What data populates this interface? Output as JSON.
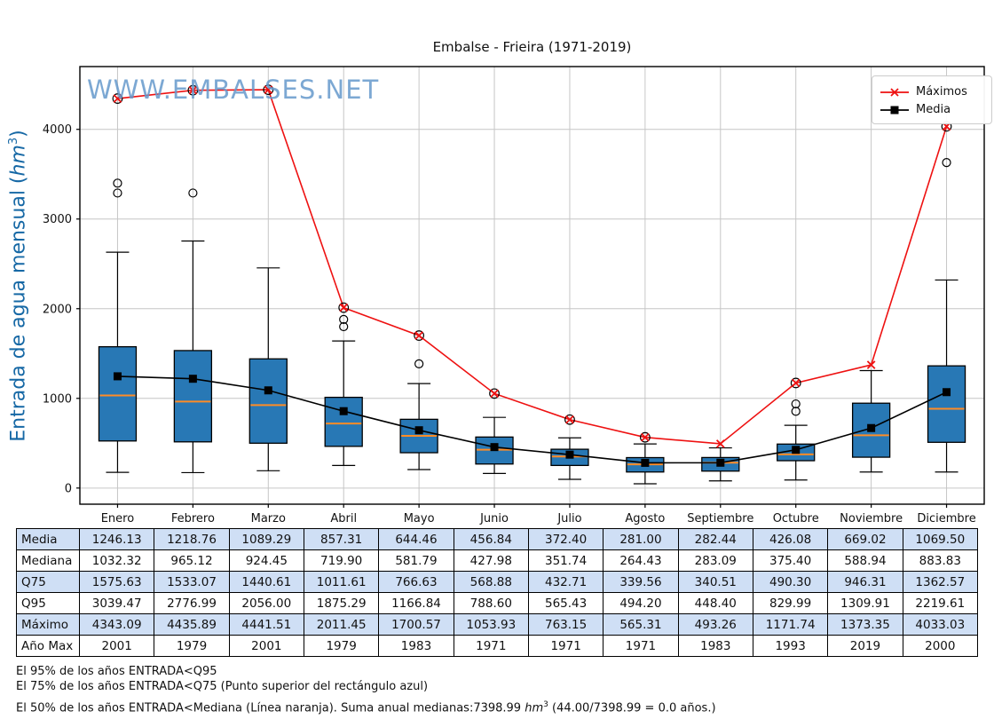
{
  "chart_data": {
    "type": "boxplot+line",
    "title": "Embalse - Frieira (1971-2019)",
    "watermark": "WWW.EMBALSES.NET",
    "ylabel": {
      "pre": "Entrada de agua mensual (",
      "unit": "hm",
      "sup": "3",
      "post": ")"
    },
    "categories": [
      "Enero",
      "Febrero",
      "Marzo",
      "Abril",
      "Mayo",
      "Junio",
      "Julio",
      "Agosto",
      "Septiembre",
      "Octubre",
      "Noviembre",
      "Diciembre"
    ],
    "ylim": [
      -180,
      4700
    ],
    "yticks": [
      0,
      1000,
      2000,
      3000,
      4000
    ],
    "grid": true,
    "legend_position": "upper right",
    "series": [
      {
        "name": "Máximos",
        "marker": "x",
        "color": "#ee1111",
        "values": [
          4343.09,
          4435.89,
          4441.51,
          2011.45,
          1700.57,
          1053.93,
          763.15,
          565.31,
          493.26,
          1171.74,
          1373.35,
          4033.03
        ],
        "circled": [
          true,
          true,
          true,
          true,
          true,
          true,
          true,
          true,
          false,
          true,
          false,
          true
        ]
      },
      {
        "name": "Media",
        "marker": "square",
        "color": "#000000",
        "values": [
          1246.13,
          1218.76,
          1089.29,
          857.31,
          644.46,
          456.84,
          372.4,
          281.0,
          282.44,
          426.08,
          669.02,
          1069.5
        ]
      }
    ],
    "boxes": [
      {
        "whisker_low": 175,
        "q1": 525,
        "median": 1032.32,
        "q3": 1575.63,
        "whisker_high": 2630,
        "outliers": [
          3290,
          3400
        ]
      },
      {
        "whisker_low": 172,
        "q1": 515,
        "median": 965.12,
        "q3": 1533.07,
        "whisker_high": 2755,
        "outliers": [
          3290
        ]
      },
      {
        "whisker_low": 193,
        "q1": 500,
        "median": 924.45,
        "q3": 1440.61,
        "whisker_high": 2455,
        "outliers": []
      },
      {
        "whisker_low": 252,
        "q1": 465,
        "median": 719.9,
        "q3": 1011.61,
        "whisker_high": 1640,
        "outliers": [
          1800,
          1880
        ]
      },
      {
        "whisker_low": 206,
        "q1": 394,
        "median": 581.79,
        "q3": 766.63,
        "whisker_high": 1165,
        "outliers": [
          1385
        ]
      },
      {
        "whisker_low": 163,
        "q1": 268,
        "median": 427.98,
        "q3": 568.88,
        "whisker_high": 788,
        "outliers": []
      },
      {
        "whisker_low": 97,
        "q1": 252,
        "median": 351.74,
        "q3": 432.71,
        "whisker_high": 560,
        "outliers": []
      },
      {
        "whisker_low": 48,
        "q1": 179,
        "median": 264.43,
        "q3": 339.56,
        "whisker_high": 492,
        "outliers": []
      },
      {
        "whisker_low": 80,
        "q1": 189,
        "median": 283.09,
        "q3": 340.51,
        "whisker_high": 448,
        "outliers": []
      },
      {
        "whisker_low": 90,
        "q1": 305,
        "median": 375.4,
        "q3": 490.3,
        "whisker_high": 700,
        "outliers": [
          856,
          938
        ]
      },
      {
        "whisker_low": 179,
        "q1": 344,
        "median": 588.94,
        "q3": 946.31,
        "whisker_high": 1310,
        "outliers": []
      },
      {
        "whisker_low": 179,
        "q1": 510,
        "median": 883.83,
        "q3": 1362.57,
        "whisker_high": 2320,
        "outliers": [
          3630
        ]
      }
    ],
    "colors": {
      "box_fill": "#2878b5",
      "box_edge": "#000000",
      "median": "#ff8c26",
      "grid": "#c6c6c6",
      "frame": "#000000",
      "watermark": "#6699cc",
      "ylabel": "#1668a5"
    }
  },
  "table": {
    "shade_color": "#cfdff5",
    "row_headers": [
      "Media",
      "Mediana",
      "Q75",
      "Q95",
      "Máximo",
      "Año Max"
    ],
    "columns": [
      "Enero",
      "Febrero",
      "Marzo",
      "Abril",
      "Mayo",
      "Junio",
      "Julio",
      "Agosto",
      "Septiembre",
      "Octubre",
      "Noviembre",
      "Diciembre"
    ],
    "rows": [
      [
        "1246.13",
        "1218.76",
        "1089.29",
        "857.31",
        "644.46",
        "456.84",
        "372.40",
        "281.00",
        "282.44",
        "426.08",
        "669.02",
        "1069.50"
      ],
      [
        "1032.32",
        "965.12",
        "924.45",
        "719.90",
        "581.79",
        "427.98",
        "351.74",
        "264.43",
        "283.09",
        "375.40",
        "588.94",
        "883.83"
      ],
      [
        "1575.63",
        "1533.07",
        "1440.61",
        "1011.61",
        "766.63",
        "568.88",
        "432.71",
        "339.56",
        "340.51",
        "490.30",
        "946.31",
        "1362.57"
      ],
      [
        "3039.47",
        "2776.99",
        "2056.00",
        "1875.29",
        "1166.84",
        "788.60",
        "565.43",
        "494.20",
        "448.40",
        "829.99",
        "1309.91",
        "2219.61"
      ],
      [
        "4343.09",
        "4435.89",
        "4441.51",
        "2011.45",
        "1700.57",
        "1053.93",
        "763.15",
        "565.31",
        "493.26",
        "1171.74",
        "1373.35",
        "4033.03"
      ],
      [
        "2001",
        "1979",
        "2001",
        "1979",
        "1983",
        "1971",
        "1971",
        "1971",
        "1983",
        "1993",
        "2019",
        "2000"
      ]
    ]
  },
  "notes": {
    "line1": "El 95% de los años ENTRADA<Q95",
    "line2": "El 75% de los años ENTRADA<Q75 (Punto superior del rectángulo azul)",
    "line3_pre": "El 50% de los años ENTRADA<Mediana (Línea naranja). Suma anual medianas:7398.99 ",
    "line3_unit": "hm",
    "line3_sup": "3",
    "line3_post": " (44.00/7398.99 = 0.0 años.)"
  }
}
